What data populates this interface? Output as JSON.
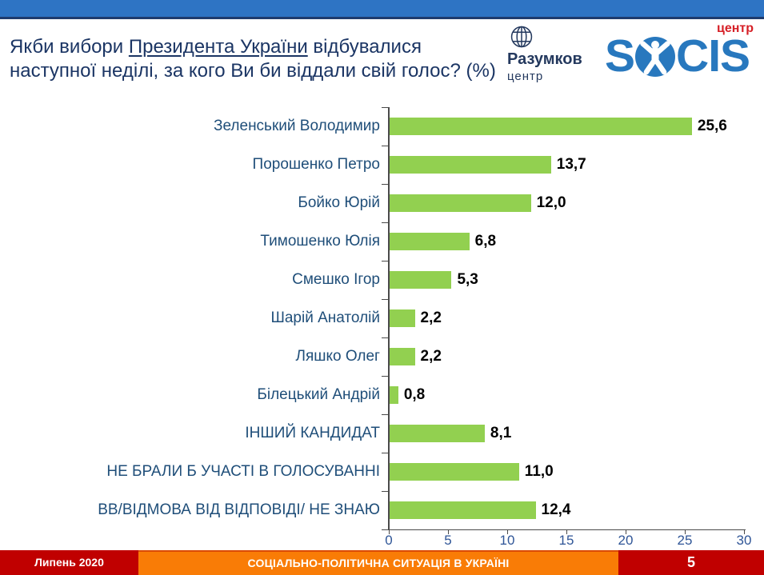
{
  "header": {
    "title_part1": "Якби вибори ",
    "title_underlined": "Президента України",
    "title_part2": " відбувалися",
    "title_line2": "наступної неділі, за кого Ви би віддали свій голос? (%)"
  },
  "logos": {
    "razumkov_name": "Разумков",
    "razumkov_sub": "центр",
    "socis_s": "S",
    "socis_cis": "CIS",
    "socis_tag": "центр"
  },
  "chart_data": {
    "type": "bar",
    "orientation": "horizontal",
    "title": "Якби вибори Президента України відбувалися наступної неділі, за кого Ви би віддали свій голос? (%)",
    "categories": [
      "Зеленський Володимир",
      "Порошенко Петро",
      "Бойко Юрій",
      "Тимошенко Юлія",
      "Смешко Ігор",
      "Шарій Анатолій",
      "Ляшко Олег",
      "Білецький Андрій",
      "ІНШИЙ КАНДИДАТ",
      "НЕ БРАЛИ Б УЧАСТІ В ГОЛОСУВАННІ",
      "ВВ/ВІДМОВА ВІД ВІДПОВІДІ/ НЕ ЗНАЮ"
    ],
    "values": [
      25.6,
      13.7,
      12.0,
      6.8,
      5.3,
      2.2,
      2.2,
      0.8,
      8.1,
      11.0,
      12.4
    ],
    "value_labels": [
      "25,6",
      "13,7",
      "12,0",
      "6,8",
      "5,3",
      "2,2",
      "2,2",
      "0,8",
      "8,1",
      "11,0",
      "12,4"
    ],
    "x_ticks": [
      0,
      5,
      10,
      15,
      20,
      25,
      30
    ],
    "xlim": [
      0,
      30
    ],
    "grid": false,
    "legend": false,
    "bar_color": "#92D050",
    "category_label_color": "#1F4E79",
    "value_label_color": "#000000",
    "tick_label_color": "#2F5597"
  },
  "footer": {
    "date_label": "Липень 2020",
    "report_title": "СОЦІАЛЬНО-ПОЛІТИЧНА СИТУАЦІЯ В УКРАЇНІ",
    "page_number": "5"
  },
  "colors": {
    "top_bar": "#2E74C4",
    "top_bar_edge": "#1E3B6E",
    "title_text": "#1B3564",
    "footer_red": "#C00000",
    "footer_orange": "#F97C06",
    "socis_blue": "#2878BE",
    "logo_tag_red": "#D61F26",
    "razumkov_navy": "#24395E"
  }
}
